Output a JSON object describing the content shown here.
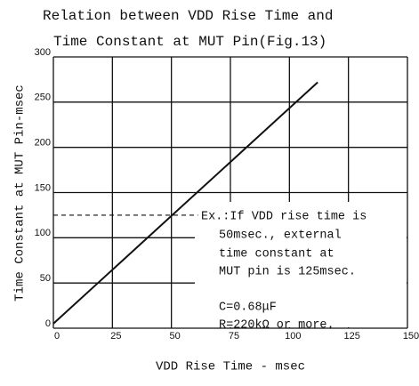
{
  "chart_data": {
    "type": "line",
    "title_lines": [
      "Relation between VDD Rise Time and",
      "Time Constant at MUT Pin(Fig.13)"
    ],
    "x_label": "VDD Rise Time - msec",
    "y_label": "Time Constant at MUT Pin-msec",
    "x": [
      0,
      112
    ],
    "series": [
      {
        "color": "#111111",
        "values": [
          5,
          272
        ]
      }
    ],
    "xlim": [
      0,
      150
    ],
    "xticks": [
      0,
      25,
      50,
      75,
      100,
      125,
      150
    ],
    "ylim": [
      0,
      300
    ],
    "yticks": [
      0,
      50,
      100,
      150,
      200,
      250,
      300
    ],
    "grid": true,
    "example_point": {
      "x": 50,
      "y": 125
    },
    "annotation_lines": [
      "Ex.:If VDD rise time is",
      "50msec., external",
      "time constant at",
      "MUT pin is 125msec.",
      "C=0.68μF",
      "R=220kΩ or more."
    ]
  }
}
